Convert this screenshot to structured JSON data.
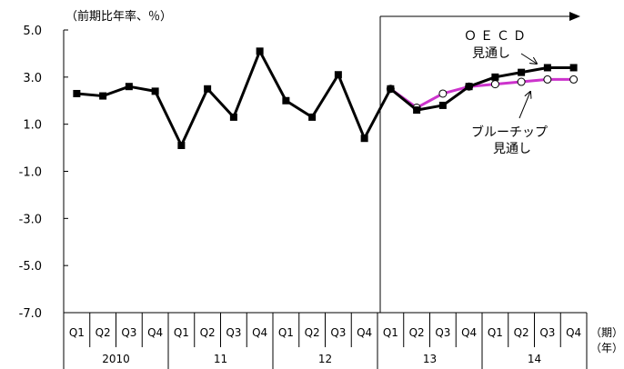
{
  "chart_data": {
    "type": "line",
    "unit_label": "（前期比年率、％）",
    "ylim": [
      -7.0,
      5.0
    ],
    "y_ticks": [
      "5.0",
      "3.0",
      "1.0",
      "-1.0",
      "-3.0",
      "-5.0",
      "-7.0"
    ],
    "y_tick_values": [
      5,
      3,
      1,
      -1,
      -3,
      -5,
      -7
    ],
    "grid": false,
    "categories": [
      "Q1",
      "Q2",
      "Q3",
      "Q4",
      "Q1",
      "Q2",
      "Q3",
      "Q4",
      "Q1",
      "Q2",
      "Q3",
      "Q4",
      "Q1",
      "Q2",
      "Q3",
      "Q4",
      "Q1",
      "Q2",
      "Q3",
      "Q4"
    ],
    "years": [
      "2010",
      "11",
      "12",
      "13",
      "14"
    ],
    "x_period_label": "（期）",
    "x_year_label": "（年）",
    "series": [
      {
        "name": "OECD見通し",
        "color": "#000000",
        "marker": "square",
        "values": [
          2.3,
          2.2,
          2.6,
          2.4,
          0.1,
          2.5,
          1.3,
          4.1,
          2.0,
          1.3,
          3.1,
          0.4,
          2.5,
          1.6,
          1.8,
          2.6,
          3.0,
          3.2,
          3.4,
          3.4
        ]
      },
      {
        "name": "ブルーチップ見通し",
        "color": "#cc33cc",
        "marker": "circle",
        "values": [
          null,
          null,
          null,
          null,
          null,
          null,
          null,
          null,
          null,
          null,
          null,
          null,
          2.5,
          1.7,
          2.3,
          2.6,
          2.7,
          2.8,
          2.9,
          2.9
        ]
      }
    ],
    "annotations": {
      "oecd_line1": "ＯＥＣＤ",
      "oecd_line2": "見通し",
      "bluechip_line1": "ブルーチップ",
      "bluechip_line2": "見通し"
    },
    "forecast_marker": "vertical line with right arrow from 13Q1"
  }
}
